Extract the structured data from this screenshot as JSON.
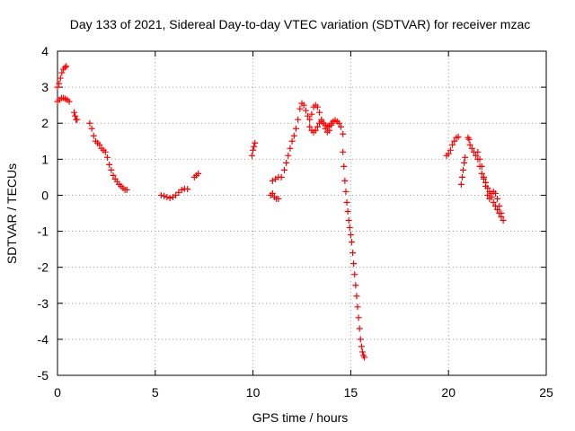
{
  "chart_data": {
    "type": "scatter",
    "title": "Day 133 of 2021, Sidereal Day-to-day VTEC variation (SDTVAR) for receiver mzac",
    "xlabel": "GPS time / hours",
    "ylabel": "SDTVAR / TECUs",
    "xlim": [
      0,
      25
    ],
    "ylim": [
      -5,
      4
    ],
    "xticks": [
      0,
      5,
      10,
      15,
      20,
      25
    ],
    "yticks": [
      -5,
      -4,
      -3,
      -2,
      -1,
      0,
      1,
      2,
      3,
      4
    ],
    "xtick_labels": [
      "0",
      "5",
      "10",
      "15",
      "20",
      "25"
    ],
    "ytick_labels": [
      "-5",
      "-4",
      "-3",
      "-2",
      "-1",
      "0",
      "1",
      "2",
      "3",
      "4"
    ],
    "grid": true,
    "marker": "+",
    "color": "#ff0000",
    "series": [
      {
        "name": "SDTVAR",
        "points": [
          [
            0.0,
            3.0
          ],
          [
            0.08,
            3.1
          ],
          [
            0.15,
            3.25
          ],
          [
            0.22,
            3.4
          ],
          [
            0.3,
            3.5
          ],
          [
            0.38,
            3.55
          ],
          [
            0.45,
            3.58
          ],
          [
            0.0,
            2.6
          ],
          [
            0.1,
            2.65
          ],
          [
            0.2,
            2.7
          ],
          [
            0.3,
            2.7
          ],
          [
            0.4,
            2.68
          ],
          [
            0.5,
            2.65
          ],
          [
            0.6,
            2.6
          ],
          [
            0.85,
            2.3
          ],
          [
            0.9,
            2.2
          ],
          [
            0.95,
            2.1
          ],
          [
            1.0,
            2.1
          ],
          [
            1.65,
            2.0
          ],
          [
            1.75,
            1.85
          ],
          [
            1.85,
            1.65
          ],
          [
            1.95,
            1.5
          ],
          [
            2.05,
            1.45
          ],
          [
            2.15,
            1.4
          ],
          [
            2.25,
            1.3
          ],
          [
            2.35,
            1.25
          ],
          [
            2.45,
            1.2
          ],
          [
            2.55,
            1.05
          ],
          [
            2.65,
            0.85
          ],
          [
            2.75,
            0.7
          ],
          [
            2.85,
            0.55
          ],
          [
            2.95,
            0.45
          ],
          [
            3.05,
            0.38
          ],
          [
            3.15,
            0.3
          ],
          [
            3.25,
            0.25
          ],
          [
            3.35,
            0.2
          ],
          [
            3.45,
            0.15
          ],
          [
            3.55,
            0.15
          ],
          [
            5.3,
            0.0
          ],
          [
            5.45,
            -0.02
          ],
          [
            5.6,
            -0.05
          ],
          [
            5.75,
            -0.08
          ],
          [
            5.9,
            -0.05
          ],
          [
            6.05,
            0.0
          ],
          [
            6.2,
            0.08
          ],
          [
            6.35,
            0.15
          ],
          [
            6.5,
            0.18
          ],
          [
            6.65,
            0.17
          ],
          [
            7.0,
            0.5
          ],
          [
            7.1,
            0.55
          ],
          [
            7.2,
            0.6
          ],
          [
            9.95,
            1.1
          ],
          [
            10.0,
            1.25
          ],
          [
            10.05,
            1.35
          ],
          [
            10.1,
            1.45
          ],
          [
            10.9,
            0.0
          ],
          [
            11.0,
            0.05
          ],
          [
            11.1,
            -0.05
          ],
          [
            11.2,
            -0.1
          ],
          [
            11.3,
            -0.1
          ],
          [
            11.0,
            0.4
          ],
          [
            11.15,
            0.45
          ],
          [
            11.3,
            0.5
          ],
          [
            11.45,
            0.5
          ],
          [
            11.6,
            0.7
          ],
          [
            11.7,
            0.9
          ],
          [
            11.8,
            1.1
          ],
          [
            11.9,
            1.3
          ],
          [
            12.0,
            1.5
          ],
          [
            12.1,
            1.65
          ],
          [
            12.2,
            1.85
          ],
          [
            12.3,
            2.1
          ],
          [
            12.4,
            2.4
          ],
          [
            12.5,
            2.55
          ],
          [
            12.6,
            2.5
          ],
          [
            12.7,
            2.35
          ],
          [
            12.8,
            2.2
          ],
          [
            12.9,
            2.1
          ],
          [
            13.0,
            2.25
          ],
          [
            13.1,
            2.45
          ],
          [
            13.2,
            2.5
          ],
          [
            13.3,
            2.45
          ],
          [
            13.4,
            2.3
          ],
          [
            13.5,
            2.1
          ],
          [
            13.6,
            2.0
          ],
          [
            13.7,
            1.95
          ],
          [
            13.8,
            1.9
          ],
          [
            13.9,
            1.92
          ],
          [
            14.0,
            2.0
          ],
          [
            14.1,
            2.05
          ],
          [
            14.2,
            2.08
          ],
          [
            14.3,
            2.05
          ],
          [
            14.4,
            2.0
          ],
          [
            14.5,
            1.9
          ],
          [
            14.6,
            1.7
          ],
          [
            12.9,
            1.9
          ],
          [
            13.0,
            1.8
          ],
          [
            13.1,
            1.75
          ],
          [
            13.2,
            1.8
          ],
          [
            13.3,
            1.9
          ],
          [
            13.4,
            2.0
          ],
          [
            13.5,
            2.05
          ],
          [
            13.6,
            2.0
          ],
          [
            13.7,
            1.85
          ],
          [
            13.8,
            1.75
          ],
          [
            13.9,
            1.8
          ],
          [
            14.0,
            1.95
          ],
          [
            14.6,
            1.2
          ],
          [
            14.65,
            0.8
          ],
          [
            14.7,
            0.4
          ],
          [
            14.75,
            0.1
          ],
          [
            14.8,
            -0.2
          ],
          [
            14.85,
            -0.45
          ],
          [
            14.9,
            -0.7
          ],
          [
            14.95,
            -0.9
          ],
          [
            15.0,
            -1.1
          ],
          [
            15.05,
            -1.3
          ],
          [
            15.1,
            -1.6
          ],
          [
            15.15,
            -1.9
          ],
          [
            15.2,
            -2.2
          ],
          [
            15.25,
            -2.5
          ],
          [
            15.3,
            -2.8
          ],
          [
            15.35,
            -3.1
          ],
          [
            15.4,
            -3.4
          ],
          [
            15.45,
            -3.7
          ],
          [
            15.5,
            -4.0
          ],
          [
            15.55,
            -4.2
          ],
          [
            15.6,
            -4.35
          ],
          [
            15.65,
            -4.45
          ],
          [
            15.7,
            -4.5
          ],
          [
            19.9,
            1.1
          ],
          [
            20.0,
            1.15
          ],
          [
            20.1,
            1.25
          ],
          [
            20.2,
            1.4
          ],
          [
            20.3,
            1.5
          ],
          [
            20.4,
            1.6
          ],
          [
            20.5,
            1.62
          ],
          [
            20.65,
            0.3
          ],
          [
            20.7,
            0.5
          ],
          [
            20.75,
            0.7
          ],
          [
            20.8,
            0.9
          ],
          [
            20.85,
            1.05
          ],
          [
            21.0,
            1.6
          ],
          [
            21.05,
            1.55
          ],
          [
            21.1,
            1.4
          ],
          [
            21.2,
            1.3
          ],
          [
            21.3,
            1.2
          ],
          [
            21.4,
            1.1
          ],
          [
            21.5,
            1.0
          ],
          [
            21.6,
            0.8
          ],
          [
            21.7,
            0.6
          ],
          [
            21.8,
            0.45
          ],
          [
            21.9,
            0.35
          ],
          [
            22.0,
            0.2
          ],
          [
            22.1,
            0.1
          ],
          [
            22.2,
            -0.05
          ],
          [
            22.3,
            -0.2
          ],
          [
            22.4,
            -0.3
          ],
          [
            22.5,
            -0.4
          ],
          [
            22.6,
            -0.5
          ],
          [
            22.7,
            -0.6
          ],
          [
            22.8,
            -0.7
          ],
          [
            21.5,
            1.2
          ],
          [
            21.6,
            1.0
          ],
          [
            21.7,
            0.8
          ],
          [
            21.8,
            0.5
          ],
          [
            21.9,
            0.25
          ],
          [
            22.0,
            0.0
          ],
          [
            22.1,
            -0.1
          ],
          [
            22.2,
            0.05
          ],
          [
            22.3,
            0.1
          ],
          [
            22.4,
            0.05
          ],
          [
            22.5,
            -0.1
          ],
          [
            22.6,
            -0.3
          ],
          [
            22.7,
            -0.5
          ]
        ]
      }
    ]
  }
}
